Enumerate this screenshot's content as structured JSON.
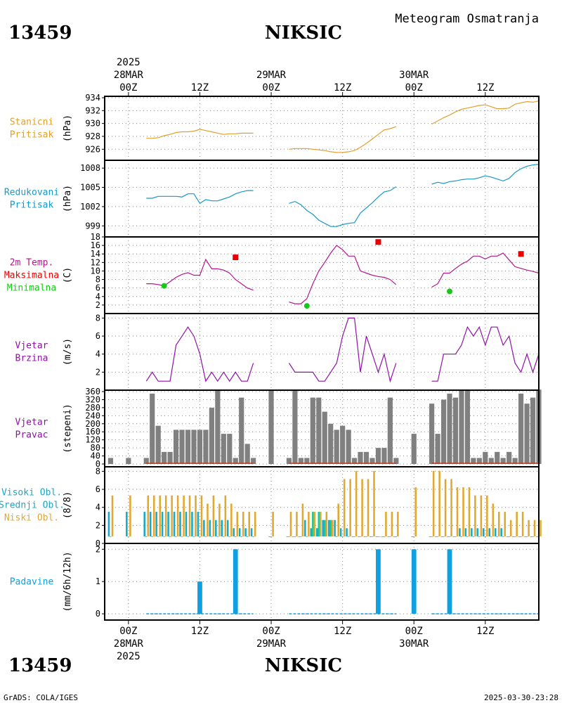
{
  "header": {
    "station_id": "13459",
    "station_name": "NIKSIC",
    "product": "Meteogram Osmatranja"
  },
  "footer": {
    "station_id": "13459",
    "station_name": "NIKSIC",
    "credit": "GrADS: COLA/IGES",
    "timestamp": "2025-03-30-23:28"
  },
  "time_axis": {
    "range_hours": [
      -4,
      69
    ],
    "tick_hours": [
      0,
      12,
      24,
      36,
      48,
      60
    ],
    "tick_labels": [
      "00Z",
      "12Z",
      "00Z",
      "12Z",
      "00Z",
      "12Z"
    ],
    "date_labels": [
      {
        "hour": 0,
        "date": "28MAR",
        "year": "2025"
      },
      {
        "hour": 24,
        "date": "29MAR",
        "year": ""
      },
      {
        "hour": 48,
        "date": "30MAR",
        "year": ""
      }
    ]
  },
  "colors": {
    "station_pressure": "#e0a030",
    "reduced_pressure": "#1898c8",
    "temperature": "#b0188c",
    "tmax": "#e80000",
    "tmin": "#18c818",
    "wind": "#9010a8",
    "wind_dir": "#808080",
    "wind_calm_line": "#c04020",
    "cloud_high": "#18a8c8",
    "cloud_mid": "#20c890",
    "cloud_low": "#e0a830",
    "precip": "#10a0e0"
  },
  "chart_data": [
    {
      "id": "station_pressure",
      "type": "line",
      "label_lines": [
        "Stanicni",
        "Pritisak"
      ],
      "unit": "(hPa)",
      "ylim": [
        924.5,
        934
      ],
      "yticks": [
        926,
        928,
        930,
        932,
        934
      ],
      "series": [
        {
          "x": [
            3,
            4,
            5,
            6,
            7,
            8,
            9,
            10,
            11,
            12,
            13,
            14,
            15,
            16,
            17,
            18,
            19,
            20,
            21
          ],
          "y": [
            927.7,
            927.7,
            927.8,
            928.1,
            928.3,
            928.6,
            928.7,
            928.7,
            928.8,
            929.1,
            928.9,
            928.7,
            928.5,
            928.3,
            928.4,
            928.4,
            928.5,
            928.5,
            928.5
          ]
        },
        {
          "x": [
            27,
            28,
            29,
            30,
            31,
            32,
            33,
            34,
            35,
            36,
            37,
            38,
            39,
            40,
            41,
            42,
            43,
            44,
            45
          ],
          "y": [
            926.0,
            926.1,
            926.1,
            926.1,
            926.0,
            925.9,
            925.8,
            925.6,
            925.5,
            925.5,
            925.6,
            925.8,
            926.3,
            926.9,
            927.6,
            928.3,
            929.0,
            929.2,
            929.5
          ]
        },
        {
          "x": [
            51,
            52,
            53,
            54,
            55,
            56,
            57,
            58,
            59,
            60,
            61,
            62,
            63,
            64,
            65,
            66,
            67,
            68,
            69
          ],
          "y": [
            929.9,
            930.4,
            930.9,
            931.3,
            931.8,
            932.2,
            932.4,
            932.6,
            932.8,
            932.9,
            932.6,
            932.3,
            932.3,
            932.4,
            933.0,
            933.2,
            933.4,
            933.3,
            933.5
          ]
        }
      ]
    },
    {
      "id": "reduced_pressure",
      "type": "line",
      "label_lines": [
        "Redukovani",
        "Pritisak"
      ],
      "unit": "(hPa)",
      "ylim": [
        997.5,
        1009
      ],
      "yticks": [
        999,
        1002,
        1005,
        1008
      ],
      "series": [
        {
          "x": [
            3,
            4,
            5,
            6,
            7,
            8,
            9,
            10,
            11,
            12,
            13,
            14,
            15,
            16,
            17,
            18,
            19,
            20,
            21
          ],
          "y": [
            1003.3,
            1003.3,
            1003.6,
            1003.6,
            1003.6,
            1003.6,
            1003.5,
            1004.0,
            1004.0,
            1002.5,
            1003.1,
            1002.9,
            1002.9,
            1003.2,
            1003.5,
            1004.0,
            1004.3,
            1004.5,
            1004.5
          ]
        },
        {
          "x": [
            27,
            28,
            29,
            30,
            31,
            32,
            33,
            34,
            35,
            36,
            37,
            38,
            39,
            40,
            41,
            42,
            43,
            44,
            45
          ],
          "y": [
            1002.5,
            1002.8,
            1002.3,
            1001.4,
            1000.8,
            999.9,
            999.4,
            998.9,
            998.9,
            999.2,
            999.4,
            999.5,
            1001.0,
            1001.8,
            1002.6,
            1003.5,
            1004.3,
            1004.5,
            1005.1
          ]
        },
        {
          "x": [
            51,
            52,
            53,
            54,
            55,
            56,
            57,
            58,
            59,
            60,
            61,
            62,
            63,
            64,
            65,
            66,
            67,
            68,
            69
          ],
          "y": [
            1005.5,
            1005.8,
            1005.6,
            1005.9,
            1006.0,
            1006.2,
            1006.3,
            1006.3,
            1006.5,
            1006.8,
            1006.6,
            1006.3,
            1006.0,
            1006.4,
            1007.3,
            1007.9,
            1008.3,
            1008.5,
            1008.6
          ]
        }
      ]
    },
    {
      "id": "temperature",
      "type": "line",
      "label_lines": [
        "2m Temp.",
        "Maksimalna",
        "Minimalna"
      ],
      "unit": "(C)",
      "ylim": [
        0,
        18
      ],
      "yticks": [
        2,
        4,
        6,
        8,
        10,
        12,
        14,
        16,
        18
      ],
      "series": [
        {
          "name": "2m Temp.",
          "x": [
            3,
            4,
            5,
            6,
            7,
            8,
            9,
            10,
            11,
            12,
            13,
            14,
            15,
            16,
            17,
            18,
            19,
            20,
            21
          ],
          "y": [
            7.0,
            7.0,
            6.8,
            6.5,
            7.5,
            8.5,
            9.2,
            9.6,
            9.0,
            9.0,
            12.7,
            10.5,
            10.5,
            10.2,
            9.5,
            8.0,
            7.0,
            6.0,
            5.5
          ]
        },
        {
          "name": "2m Temp.",
          "x": [
            27,
            28,
            29,
            30,
            31,
            32,
            33,
            34,
            35,
            36,
            37,
            38,
            39,
            40,
            41,
            42,
            43,
            44,
            45
          ],
          "y": [
            2.7,
            2.3,
            2.3,
            3.5,
            7.0,
            10.0,
            12.0,
            14.2,
            16.0,
            15.0,
            13.5,
            13.5,
            10.0,
            9.5,
            9.0,
            8.7,
            8.5,
            8.0,
            6.8
          ]
        },
        {
          "name": "2m Temp.",
          "x": [
            51,
            52,
            53,
            54,
            55,
            56,
            57,
            58,
            59,
            60,
            61,
            62,
            63,
            64,
            65,
            66,
            67,
            68,
            69
          ],
          "y": [
            6.2,
            7.0,
            9.5,
            9.5,
            10.6,
            11.6,
            12.3,
            13.5,
            13.5,
            12.8,
            13.5,
            13.5,
            14.2,
            12.6,
            11.0,
            10.6,
            10.2,
            9.9,
            9.5
          ]
        }
      ],
      "tmax": {
        "name": "Maksimalna",
        "x": [
          18,
          42,
          66
        ],
        "y": [
          13.2,
          16.8,
          14.0
        ]
      },
      "tmin": {
        "name": "Minimalna",
        "x": [
          6,
          30,
          54
        ],
        "y": [
          6.5,
          1.8,
          5.2
        ]
      }
    },
    {
      "id": "wind_speed",
      "type": "line",
      "label_lines": [
        "Vjetar",
        "Brzina"
      ],
      "unit": "(m/s)",
      "ylim": [
        0,
        8.5
      ],
      "yticks": [
        2,
        4,
        6,
        8
      ],
      "series": [
        {
          "x": [
            3,
            4,
            5,
            6,
            7,
            8,
            9,
            10,
            11,
            12,
            13,
            14,
            15,
            16,
            17,
            18,
            19,
            20,
            21
          ],
          "y": [
            1,
            2,
            1,
            1,
            1,
            5,
            6,
            7,
            6,
            4,
            1,
            2,
            1,
            2,
            1,
            2,
            1,
            1,
            3
          ]
        },
        {
          "x": [
            27,
            28,
            29,
            30,
            31,
            32,
            33,
            34,
            35,
            36,
            37,
            38,
            39,
            40,
            41,
            42,
            43,
            44,
            45
          ],
          "y": [
            3,
            2,
            2,
            2,
            2,
            1,
            1,
            2,
            3,
            6,
            8,
            8,
            2,
            6,
            4,
            2,
            4,
            1,
            3
          ]
        },
        {
          "x": [
            51,
            52,
            53,
            54,
            55,
            56,
            57,
            58,
            59,
            60,
            61,
            62,
            63,
            64,
            65,
            66,
            67,
            68,
            69
          ],
          "y": [
            1,
            1,
            4,
            4,
            4,
            5,
            7,
            6,
            7,
            5,
            7,
            7,
            5,
            6,
            3,
            2,
            4,
            2,
            4
          ]
        }
      ]
    },
    {
      "id": "wind_direction",
      "type": "bar",
      "label_lines": [
        "Vjetar",
        "Pravac"
      ],
      "unit": "(stepeni)",
      "ylim": [
        0,
        360
      ],
      "yticks": [
        0,
        40,
        80,
        120,
        160,
        200,
        240,
        280,
        320,
        360
      ],
      "bar_width_hours": 0.85,
      "x": [
        -3,
        0,
        3,
        4,
        5,
        6,
        7,
        8,
        9,
        10,
        11,
        12,
        13,
        14,
        15,
        16,
        17,
        18,
        19,
        20,
        21,
        24,
        27,
        28,
        29,
        30,
        31,
        32,
        33,
        34,
        35,
        36,
        37,
        38,
        39,
        40,
        41,
        42,
        43,
        44,
        45,
        48,
        51,
        52,
        53,
        54,
        55,
        56,
        57,
        58,
        59,
        60,
        61,
        62,
        63,
        64,
        65,
        66,
        67,
        68,
        69
      ],
      "values": [
        30,
        30,
        30,
        350,
        190,
        60,
        60,
        170,
        170,
        170,
        170,
        170,
        170,
        280,
        370,
        150,
        150,
        30,
        330,
        100,
        30,
        370,
        30,
        370,
        30,
        30,
        330,
        330,
        260,
        200,
        170,
        190,
        170,
        30,
        60,
        60,
        30,
        80,
        80,
        330,
        30,
        150,
        300,
        150,
        320,
        350,
        330,
        370,
        370,
        30,
        30,
        60,
        30,
        60,
        30,
        60,
        30,
        350,
        300,
        330,
        370
      ],
      "calm_segments": [
        [
          3,
          21
        ],
        [
          27,
          45
        ],
        [
          51,
          69
        ]
      ]
    },
    {
      "id": "cloud_cover",
      "type": "bar",
      "label_lines": [
        "Visoki Obl.",
        "Srednji Obl.",
        "Niski Obl."
      ],
      "unit": "(8/8)",
      "ylim": [
        0,
        8.5
      ],
      "yticks": [
        0,
        2,
        4,
        6,
        8
      ],
      "x": [
        -3,
        0,
        3,
        4,
        5,
        6,
        7,
        8,
        9,
        10,
        11,
        12,
        13,
        14,
        15,
        16,
        17,
        18,
        19,
        20,
        21,
        24,
        27,
        28,
        29,
        30,
        31,
        32,
        33,
        34,
        35,
        36,
        37,
        38,
        39,
        40,
        41,
        42,
        43,
        44,
        45,
        48,
        51,
        52,
        53,
        54,
        55,
        56,
        57,
        58,
        59,
        60,
        61,
        62,
        63,
        64,
        65,
        66,
        67,
        68,
        69
      ],
      "series": [
        {
          "name": "Visoki Obl.",
          "values": [
            3,
            3,
            3,
            3,
            3,
            3,
            3,
            3,
            3,
            3,
            3,
            3,
            2,
            2,
            2,
            2,
            2,
            1,
            1,
            1,
            1,
            0,
            0,
            0,
            0,
            2,
            1,
            1,
            2,
            2,
            2,
            1,
            1,
            0,
            0,
            0,
            0,
            0,
            0,
            0,
            0,
            0,
            0,
            0,
            0,
            0,
            0,
            1,
            1,
            1,
            1,
            1,
            1,
            1,
            1,
            0,
            0,
            0,
            0,
            0,
            0
          ]
        },
        {
          "name": "Srednji Obl.",
          "values": [
            0,
            0,
            0,
            0,
            0,
            0,
            0,
            0,
            0,
            0,
            0,
            0,
            0,
            0,
            0,
            0,
            0,
            0,
            0,
            0,
            0,
            0,
            0,
            0,
            0,
            0,
            3,
            3,
            2,
            2,
            0,
            0,
            0,
            0,
            0,
            0,
            0,
            0,
            0,
            0,
            0,
            0,
            0,
            0,
            0,
            0,
            0,
            0,
            0,
            0,
            0,
            0,
            0,
            0,
            0,
            0,
            0,
            0,
            0,
            0,
            0
          ]
        },
        {
          "name": "Niski Obl.",
          "values": [
            5,
            5,
            5,
            5,
            5,
            5,
            5,
            5,
            5,
            5,
            5,
            5,
            4,
            5,
            4,
            5,
            4,
            3,
            3,
            3,
            3,
            3,
            3,
            3,
            4,
            3,
            3,
            3,
            3,
            2,
            4,
            7,
            7,
            8,
            7,
            7,
            8,
            0,
            3,
            3,
            3,
            6,
            8,
            8,
            7,
            7,
            6,
            6,
            6,
            5,
            5,
            5,
            4,
            3,
            3,
            2,
            3,
            3,
            2,
            2,
            2
          ]
        }
      ]
    },
    {
      "id": "precipitation",
      "type": "bar",
      "label_lines": [
        "Padavine"
      ],
      "unit": "(mm/6h/12h)",
      "ylim": [
        -0.15,
        2.05
      ],
      "yticks": [
        0,
        1,
        2
      ],
      "bar_width_hours": 0.8,
      "x": [
        12,
        18,
        42,
        48,
        54
      ],
      "values": [
        1,
        2,
        2,
        2,
        2
      ],
      "trace_segments": [
        [
          3,
          21
        ],
        [
          27,
          45
        ],
        [
          51,
          69
        ]
      ]
    }
  ]
}
